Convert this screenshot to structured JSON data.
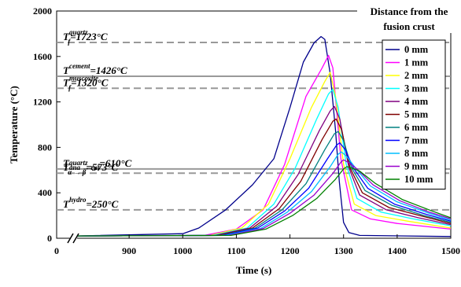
{
  "chart_data": {
    "type": "line",
    "title": "",
    "xlabel": "Time (s)",
    "ylabel": "Temperature (°C)",
    "xlim": [
      800,
      1500
    ],
    "ylim": [
      0,
      2000
    ],
    "axis_break": {
      "from": 0,
      "to": 800
    },
    "xticks": [
      0,
      900,
      1000,
      1100,
      1200,
      1300,
      1400,
      1500
    ],
    "xtick_labels": [
      "0",
      "900",
      "1000",
      "1100",
      "1200",
      "1300",
      "1400",
      "1500"
    ],
    "yticks": [
      0,
      400,
      800,
      1200,
      1600,
      2000
    ],
    "ytick_labels": [
      "0",
      "400",
      "800",
      "1200",
      "1600",
      "2000"
    ],
    "grid": false,
    "legend_title": "Distance from the fusion crust",
    "legend_placement": "top-right",
    "reference_lines": [
      {
        "value": 1723,
        "base": "T",
        "sup": "quartz",
        "sub": "f",
        "text": "=1723°C",
        "color": "#999999",
        "dash": true
      },
      {
        "value": 1426,
        "base": "T",
        "sup": "cement",
        "sub": "",
        "text": "=1426°C",
        "color": "#999999",
        "dash": false
      },
      {
        "value": 1320,
        "base": "T",
        "sup": "muscovite",
        "sub": "f",
        "text": "=1320°C",
        "color": "#999999",
        "dash": true
      },
      {
        "value": 610,
        "base": "T",
        "sup": "",
        "sub": "ana → rut",
        "text": "=610°C",
        "color": "#999999",
        "dash": false
      },
      {
        "value": 573,
        "base": "T",
        "sup": "quartz",
        "sub": "α → β",
        "text": "=573°C",
        "color": "#999999",
        "dash": true
      },
      {
        "value": 250,
        "base": "T",
        "sup": "hydro",
        "sub": "",
        "text": "=250°C",
        "color": "#999999",
        "dash": true
      }
    ],
    "series": [
      {
        "name": "0 mm",
        "color": "#00008B",
        "points": [
          [
            800,
            20
          ],
          [
            1000,
            40
          ],
          [
            1030,
            90
          ],
          [
            1080,
            250
          ],
          [
            1130,
            470
          ],
          [
            1170,
            700
          ],
          [
            1200,
            1150
          ],
          [
            1225,
            1550
          ],
          [
            1245,
            1720
          ],
          [
            1258,
            1775
          ],
          [
            1265,
            1750
          ],
          [
            1275,
            1450
          ],
          [
            1285,
            950
          ],
          [
            1292,
            500
          ],
          [
            1300,
            140
          ],
          [
            1310,
            50
          ],
          [
            1330,
            25
          ],
          [
            1500,
            15
          ]
        ]
      },
      {
        "name": "1 mm",
        "color": "#FF00FF",
        "points": [
          [
            800,
            20
          ],
          [
            1040,
            25
          ],
          [
            1100,
            80
          ],
          [
            1150,
            250
          ],
          [
            1190,
            650
          ],
          [
            1230,
            1250
          ],
          [
            1260,
            1500
          ],
          [
            1272,
            1610
          ],
          [
            1280,
            1500
          ],
          [
            1295,
            700
          ],
          [
            1315,
            250
          ],
          [
            1350,
            170
          ],
          [
            1400,
            130
          ],
          [
            1500,
            80
          ]
        ]
      },
      {
        "name": "2 mm",
        "color": "#FFFF00",
        "points": [
          [
            800,
            20
          ],
          [
            1050,
            25
          ],
          [
            1110,
            90
          ],
          [
            1160,
            300
          ],
          [
            1200,
            700
          ],
          [
            1240,
            1150
          ],
          [
            1265,
            1380
          ],
          [
            1275,
            1460
          ],
          [
            1285,
            1250
          ],
          [
            1300,
            650
          ],
          [
            1320,
            300
          ],
          [
            1360,
            200
          ],
          [
            1420,
            150
          ],
          [
            1500,
            90
          ]
        ]
      },
      {
        "name": "3 mm",
        "color": "#00FFFF",
        "points": [
          [
            800,
            20
          ],
          [
            1055,
            25
          ],
          [
            1120,
            90
          ],
          [
            1170,
            300
          ],
          [
            1210,
            620
          ],
          [
            1250,
            1050
          ],
          [
            1272,
            1270
          ],
          [
            1280,
            1310
          ],
          [
            1290,
            1150
          ],
          [
            1305,
            650
          ],
          [
            1325,
            350
          ],
          [
            1370,
            230
          ],
          [
            1430,
            170
          ],
          [
            1500,
            110
          ]
        ]
      },
      {
        "name": "4 mm",
        "color": "#800080",
        "points": [
          [
            800,
            20
          ],
          [
            1060,
            25
          ],
          [
            1125,
            90
          ],
          [
            1175,
            280
          ],
          [
            1215,
            560
          ],
          [
            1255,
            950
          ],
          [
            1275,
            1120
          ],
          [
            1283,
            1160
          ],
          [
            1293,
            1050
          ],
          [
            1310,
            620
          ],
          [
            1330,
            380
          ],
          [
            1380,
            250
          ],
          [
            1440,
            180
          ],
          [
            1500,
            120
          ]
        ]
      },
      {
        "name": "5 mm",
        "color": "#800000",
        "points": [
          [
            800,
            20
          ],
          [
            1065,
            25
          ],
          [
            1130,
            90
          ],
          [
            1180,
            260
          ],
          [
            1220,
            500
          ],
          [
            1260,
            870
          ],
          [
            1280,
            1030
          ],
          [
            1286,
            1050
          ],
          [
            1296,
            960
          ],
          [
            1312,
            620
          ],
          [
            1335,
            400
          ],
          [
            1385,
            270
          ],
          [
            1450,
            190
          ],
          [
            1500,
            130
          ]
        ]
      },
      {
        "name": "6 mm",
        "color": "#008080",
        "points": [
          [
            800,
            20
          ],
          [
            1070,
            25
          ],
          [
            1135,
            90
          ],
          [
            1185,
            250
          ],
          [
            1230,
            480
          ],
          [
            1265,
            780
          ],
          [
            1283,
            920
          ],
          [
            1290,
            940
          ],
          [
            1300,
            860
          ],
          [
            1315,
            620
          ],
          [
            1340,
            420
          ],
          [
            1390,
            290
          ],
          [
            1450,
            200
          ],
          [
            1500,
            140
          ]
        ]
      },
      {
        "name": "7 mm",
        "color": "#0000FF",
        "points": [
          [
            800,
            20
          ],
          [
            1075,
            25
          ],
          [
            1140,
            90
          ],
          [
            1190,
            240
          ],
          [
            1235,
            440
          ],
          [
            1270,
            700
          ],
          [
            1287,
            820
          ],
          [
            1293,
            840
          ],
          [
            1303,
            780
          ],
          [
            1318,
            620
          ],
          [
            1345,
            440
          ],
          [
            1395,
            300
          ],
          [
            1455,
            210
          ],
          [
            1500,
            150
          ]
        ]
      },
      {
        "name": "8 mm",
        "color": "#00BFFF",
        "points": [
          [
            800,
            20
          ],
          [
            1080,
            25
          ],
          [
            1145,
            85
          ],
          [
            1195,
            230
          ],
          [
            1240,
            410
          ],
          [
            1275,
            630
          ],
          [
            1290,
            740
          ],
          [
            1296,
            760
          ],
          [
            1306,
            720
          ],
          [
            1322,
            620
          ],
          [
            1350,
            460
          ],
          [
            1400,
            320
          ],
          [
            1460,
            220
          ],
          [
            1500,
            160
          ]
        ]
      },
      {
        "name": "9 mm",
        "color": "#9900CC",
        "points": [
          [
            800,
            20
          ],
          [
            1085,
            25
          ],
          [
            1150,
            85
          ],
          [
            1200,
            220
          ],
          [
            1245,
            380
          ],
          [
            1280,
            570
          ],
          [
            1295,
            670
          ],
          [
            1300,
            690
          ],
          [
            1310,
            665
          ],
          [
            1325,
            610
          ],
          [
            1355,
            470
          ],
          [
            1405,
            330
          ],
          [
            1460,
            230
          ],
          [
            1500,
            170
          ]
        ]
      },
      {
        "name": "10 mm",
        "color": "#008000",
        "points": [
          [
            800,
            20
          ],
          [
            1090,
            25
          ],
          [
            1155,
            80
          ],
          [
            1205,
            200
          ],
          [
            1250,
            350
          ],
          [
            1285,
            520
          ],
          [
            1300,
            610
          ],
          [
            1306,
            630
          ],
          [
            1315,
            620
          ],
          [
            1330,
            590
          ],
          [
            1360,
            480
          ],
          [
            1410,
            340
          ],
          [
            1465,
            240
          ],
          [
            1500,
            180
          ]
        ]
      }
    ]
  }
}
